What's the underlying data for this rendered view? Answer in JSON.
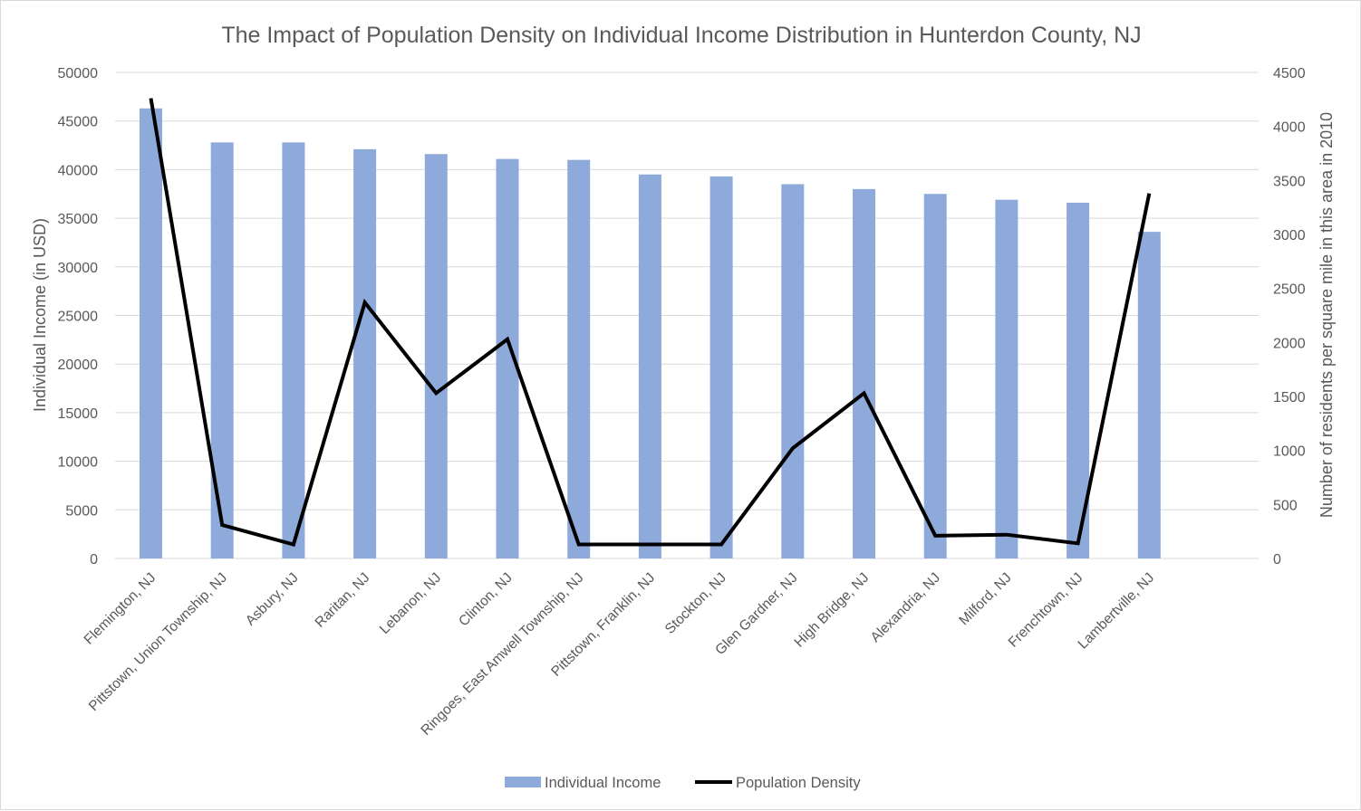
{
  "chart_data": {
    "type": "bar",
    "title": "The Impact of Population Density on Individual Income Distribution in Hunterdon County, NJ",
    "categories": [
      "Flemington, NJ",
      "Pittstown, Union Township, NJ",
      "Asbury, NJ",
      "Raritan, NJ",
      "Lebanon, NJ",
      "Clinton, NJ",
      "Ringoes, East Amwell Township, NJ",
      "Pittstown, Franklin, NJ",
      "Stockton, NJ",
      "Glen Gardner, NJ",
      "High Bridge, NJ",
      "Alexandria, NJ",
      "Milford, NJ",
      "Frenchtown, NJ",
      "Lambertville, NJ"
    ],
    "series": [
      {
        "name": "Individual Income",
        "type": "bar",
        "axis": "left",
        "color": "#8eaadb",
        "values": [
          46300,
          42800,
          42800,
          42100,
          41600,
          41100,
          41000,
          39500,
          39300,
          38500,
          38000,
          37500,
          36900,
          36600,
          33600
        ]
      },
      {
        "name": "Population Density",
        "type": "line",
        "axis": "right",
        "color": "#000000",
        "values": [
          4260,
          310,
          130,
          2370,
          1530,
          2030,
          130,
          130,
          130,
          1020,
          1530,
          210,
          220,
          140,
          3380
        ]
      }
    ],
    "ylabel": "Individual Income (in USD)",
    "y2label": "Number of residents per square mile in this area in 2010",
    "ylim": [
      0,
      50000
    ],
    "y2lim": [
      0,
      4500
    ],
    "yticks": [
      0,
      5000,
      10000,
      15000,
      20000,
      25000,
      30000,
      35000,
      40000,
      45000,
      50000
    ],
    "y2ticks": [
      0,
      500,
      1000,
      1500,
      2000,
      2500,
      3000,
      3500,
      4000,
      4500
    ],
    "grid": true,
    "legend": "bottom"
  }
}
